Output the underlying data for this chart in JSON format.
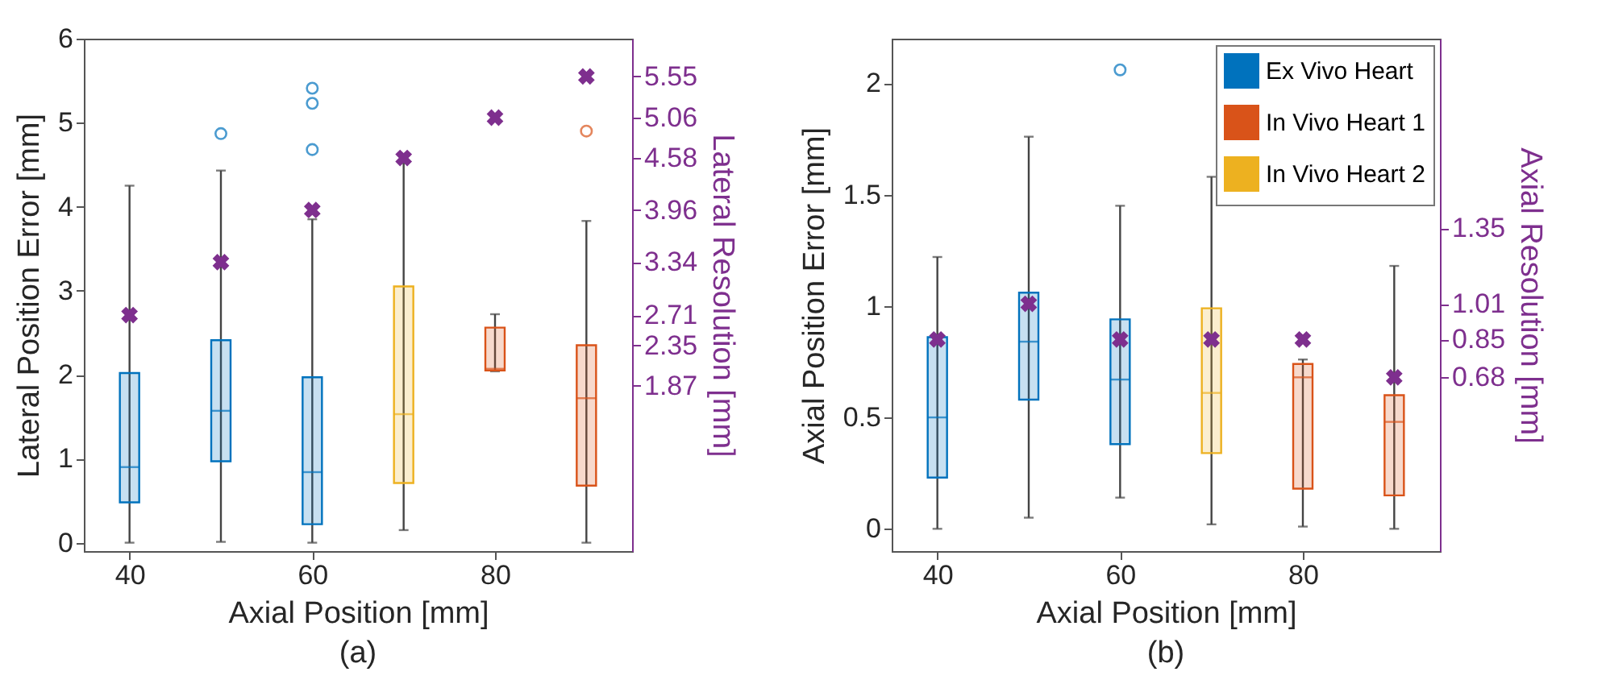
{
  "chart_data": [
    {
      "type": "box",
      "xlabel": "Axial Position [mm]",
      "ylabel": "Lateral Position Error [mm]",
      "y2label": "Lateral Resolution [mm]",
      "annotations": [
        "(a)"
      ],
      "xlim": [
        35,
        95
      ],
      "xticks": [
        40,
        60,
        80
      ],
      "ylim": [
        -0.1,
        6
      ],
      "yticks": [
        0,
        1,
        2,
        3,
        4,
        5,
        6
      ],
      "y2lim": [
        -0.1,
        6
      ],
      "y2ticks": [
        1.87,
        2.35,
        2.71,
        3.34,
        3.96,
        4.58,
        5.06,
        5.55
      ],
      "grid": false,
      "series": [
        {
          "color": "#0072bd",
          "x": [
            40,
            50,
            60
          ],
          "boxes": [
            {
              "low": 0,
              "q1": 0.48,
              "median": 0.9,
              "q3": 2.02,
              "high": 4.25
            },
            {
              "low": 0.01,
              "q1": 0.97,
              "median": 1.57,
              "q3": 2.41,
              "high": 4.43,
              "outliers": [
                4.87
              ]
            },
            {
              "low": 0,
              "q1": 0.22,
              "median": 0.84,
              "q3": 1.97,
              "high": 3.85,
              "outliers": [
                4.68,
                5.23,
                5.41
              ]
            }
          ]
        },
        {
          "color": "#d95319",
          "x": [
            80,
            90
          ],
          "boxes": [
            {
              "low": 2.04,
              "q1": 2.05,
              "median": 2.07,
              "q3": 2.56,
              "high": 2.72
            },
            {
              "low": 0,
              "q1": 0.68,
              "median": 1.72,
              "q3": 2.35,
              "high": 3.83,
              "outliers": [
                4.9
              ]
            }
          ]
        },
        {
          "color": "#edb120",
          "x": [
            70
          ],
          "boxes": [
            {
              "low": 0.15,
              "q1": 0.71,
              "median": 1.53,
              "q3": 3.05,
              "high": 4.52
            }
          ]
        },
        {
          "type": "scatter",
          "axis": "y2",
          "color": "#7e2f8e",
          "marker": "cross",
          "x": [
            40,
            50,
            60,
            70,
            80,
            90
          ],
          "values": [
            2.71,
            3.34,
            3.96,
            4.58,
            5.06,
            5.55
          ]
        }
      ]
    },
    {
      "type": "box",
      "xlabel": "Axial Position [mm]",
      "ylabel": "Axial Position Error [mm]",
      "y2label": "Axial Resolution [mm]",
      "annotations": [
        "(b)"
      ],
      "legend": "top right",
      "xlim": [
        35,
        95
      ],
      "xticks": [
        40,
        60,
        80
      ],
      "ylim": [
        -0.1,
        2.2
      ],
      "yticks": [
        0,
        0.5,
        1,
        1.5,
        2
      ],
      "y2lim": [
        -0.1,
        2.2
      ],
      "y2ticks": [
        0.68,
        0.85,
        1.01,
        1.35
      ],
      "grid": false,
      "series": [
        {
          "name": "Ex Vivo Heart",
          "color": "#0072bd",
          "x": [
            40,
            50,
            60
          ],
          "boxes": [
            {
              "low": 0,
              "q1": 0.23,
              "median": 0.5,
              "q3": 0.86,
              "high": 1.22
            },
            {
              "low": 0.05,
              "q1": 0.58,
              "median": 0.84,
              "q3": 1.06,
              "high": 1.76
            },
            {
              "low": 0.14,
              "q1": 0.38,
              "median": 0.67,
              "q3": 0.94,
              "high": 1.45,
              "outliers": [
                2.06
              ]
            }
          ]
        },
        {
          "name": "In Vivo Heart 1",
          "color": "#d95319",
          "x": [
            80,
            90
          ],
          "boxes": [
            {
              "low": 0.01,
              "q1": 0.18,
              "median": 0.68,
              "q3": 0.74,
              "high": 0.76
            },
            {
              "low": 0,
              "q1": 0.15,
              "median": 0.48,
              "q3": 0.6,
              "high": 1.18
            }
          ]
        },
        {
          "name": "In Vivo Heart 2",
          "color": "#edb120",
          "x": [
            70
          ],
          "boxes": [
            {
              "low": 0.02,
              "q1": 0.34,
              "median": 0.61,
              "q3": 0.99,
              "high": 1.58
            }
          ]
        },
        {
          "type": "scatter",
          "axis": "y2",
          "color": "#7e2f8e",
          "marker": "cross",
          "x": [
            40,
            50,
            60,
            70,
            80,
            90
          ],
          "values": [
            0.85,
            1.01,
            0.85,
            0.85,
            0.85,
            0.68
          ]
        }
      ]
    }
  ]
}
